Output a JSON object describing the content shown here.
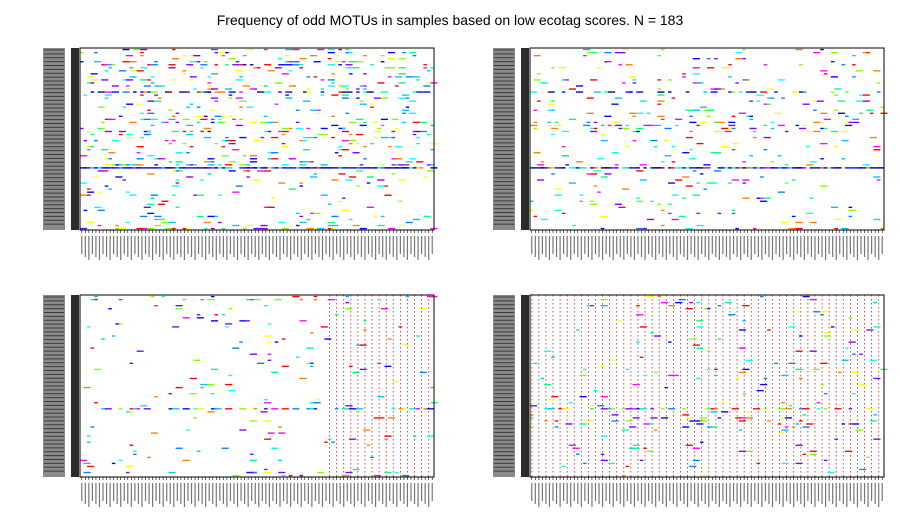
{
  "title": "Frequency of odd MOTUs in samples based on low ecotag scores. N = 183",
  "chart_data": [
    {
      "type": "heatmap",
      "panel": "top-left",
      "n_rows": 60,
      "n_cols": 100,
      "row_labels": [],
      "col_labels": [],
      "grid": false,
      "legend": "none",
      "row_band_density": [
        0.12,
        0.15,
        0.1,
        0.12,
        0.18,
        0.2,
        0.14,
        0.1,
        0.12,
        0.1,
        0.08,
        0.1,
        0.16,
        0.14,
        0.4,
        0.12,
        0.1,
        0.08,
        0.06,
        0.12,
        0.1,
        0.1,
        0.08,
        0.14,
        0.18,
        0.1,
        0.12,
        0.2,
        0.14,
        0.16,
        0.1,
        0.08,
        0.12,
        0.1,
        0.14,
        0.1,
        0.15,
        0.12,
        0.3,
        0.9,
        0.1,
        0.1,
        0.06,
        0.08,
        0.05,
        0.06,
        0.05,
        0.04,
        0.06,
        0.05,
        0.06,
        0.07,
        0.04,
        0.05,
        0.06,
        0.08,
        0.05,
        0.06,
        0.12,
        0.2
      ],
      "dark_rows": [
        14,
        39
      ],
      "red_dotted_grid_from_col": null
    },
    {
      "type": "heatmap",
      "panel": "top-right",
      "n_rows": 60,
      "n_cols": 100,
      "row_labels": [],
      "col_labels": [],
      "grid": false,
      "legend": "none",
      "row_band_density": [
        0.06,
        0.05,
        0.08,
        0.05,
        0.06,
        0.08,
        0.06,
        0.05,
        0.07,
        0.06,
        0.08,
        0.06,
        0.05,
        0.07,
        0.35,
        0.06,
        0.05,
        0.08,
        0.06,
        0.05,
        0.1,
        0.12,
        0.08,
        0.06,
        0.15,
        0.2,
        0.18,
        0.06,
        0.05,
        0.08,
        0.06,
        0.05,
        0.06,
        0.05,
        0.06,
        0.05,
        0.06,
        0.07,
        0.1,
        0.85,
        0.06,
        0.05,
        0.04,
        0.05,
        0.06,
        0.05,
        0.04,
        0.05,
        0.06,
        0.04,
        0.05,
        0.06,
        0.05,
        0.04,
        0.05,
        0.06,
        0.04,
        0.05,
        0.08,
        0.1
      ],
      "dark_rows": [
        14,
        39
      ],
      "red_dotted_grid_from_col": null
    },
    {
      "type": "heatmap",
      "panel": "bottom-left",
      "n_rows": 60,
      "n_cols": 100,
      "row_labels": [],
      "col_labels": [],
      "grid": false,
      "legend": "none",
      "row_band_density": [
        0.2,
        0.1,
        0.03,
        0.02,
        0.03,
        0.02,
        0.03,
        0.02,
        0.03,
        0.04,
        0.03,
        0.02,
        0.03,
        0.02,
        0.03,
        0.02,
        0.04,
        0.03,
        0.02,
        0.03,
        0.02,
        0.03,
        0.04,
        0.03,
        0.02,
        0.03,
        0.02,
        0.03,
        0.02,
        0.03,
        0.02,
        0.03,
        0.02,
        0.03,
        0.03,
        0.02,
        0.03,
        0.4,
        0.03,
        0.02,
        0.03,
        0.02,
        0.03,
        0.02,
        0.03,
        0.02,
        0.03,
        0.02,
        0.03,
        0.02,
        0.03,
        0.02,
        0.03,
        0.02,
        0.03,
        0.02,
        0.03,
        0.02,
        0.08,
        0.06
      ],
      "dark_rows": [],
      "red_dotted_grid_from_col": 70
    },
    {
      "type": "heatmap",
      "panel": "bottom-right",
      "n_rows": 60,
      "n_cols": 100,
      "row_labels": [],
      "col_labels": [],
      "grid": false,
      "legend": "none",
      "row_band_density": [
        0.03,
        0.02,
        0.03,
        0.06,
        0.02,
        0.03,
        0.04,
        0.02,
        0.03,
        0.02,
        0.03,
        0.02,
        0.03,
        0.02,
        0.03,
        0.02,
        0.03,
        0.02,
        0.03,
        0.02,
        0.03,
        0.02,
        0.03,
        0.02,
        0.05,
        0.03,
        0.02,
        0.03,
        0.02,
        0.03,
        0.02,
        0.03,
        0.02,
        0.03,
        0.02,
        0.03,
        0.02,
        0.3,
        0.03,
        0.04,
        0.1,
        0.12,
        0.1,
        0.12,
        0.08,
        0.03,
        0.02,
        0.03,
        0.02,
        0.03,
        0.02,
        0.03,
        0.02,
        0.03,
        0.02,
        0.03,
        0.02,
        0.03,
        0.02,
        0.03
      ],
      "dark_rows": [],
      "red_dotted_grid_from_col": 0
    }
  ],
  "colors": {
    "palette": [
      "#ffff00",
      "#00ff80",
      "#00ffff",
      "#00c0ff",
      "#0000ff",
      "#8000ff",
      "#ff00ff",
      "#ff0000",
      "#ff8000",
      "#80ff00",
      "#0080ff",
      "#000080"
    ],
    "row_sidebar": "#2b2b2b",
    "axis": "#000000",
    "dotted_grid": "#cc2222"
  }
}
